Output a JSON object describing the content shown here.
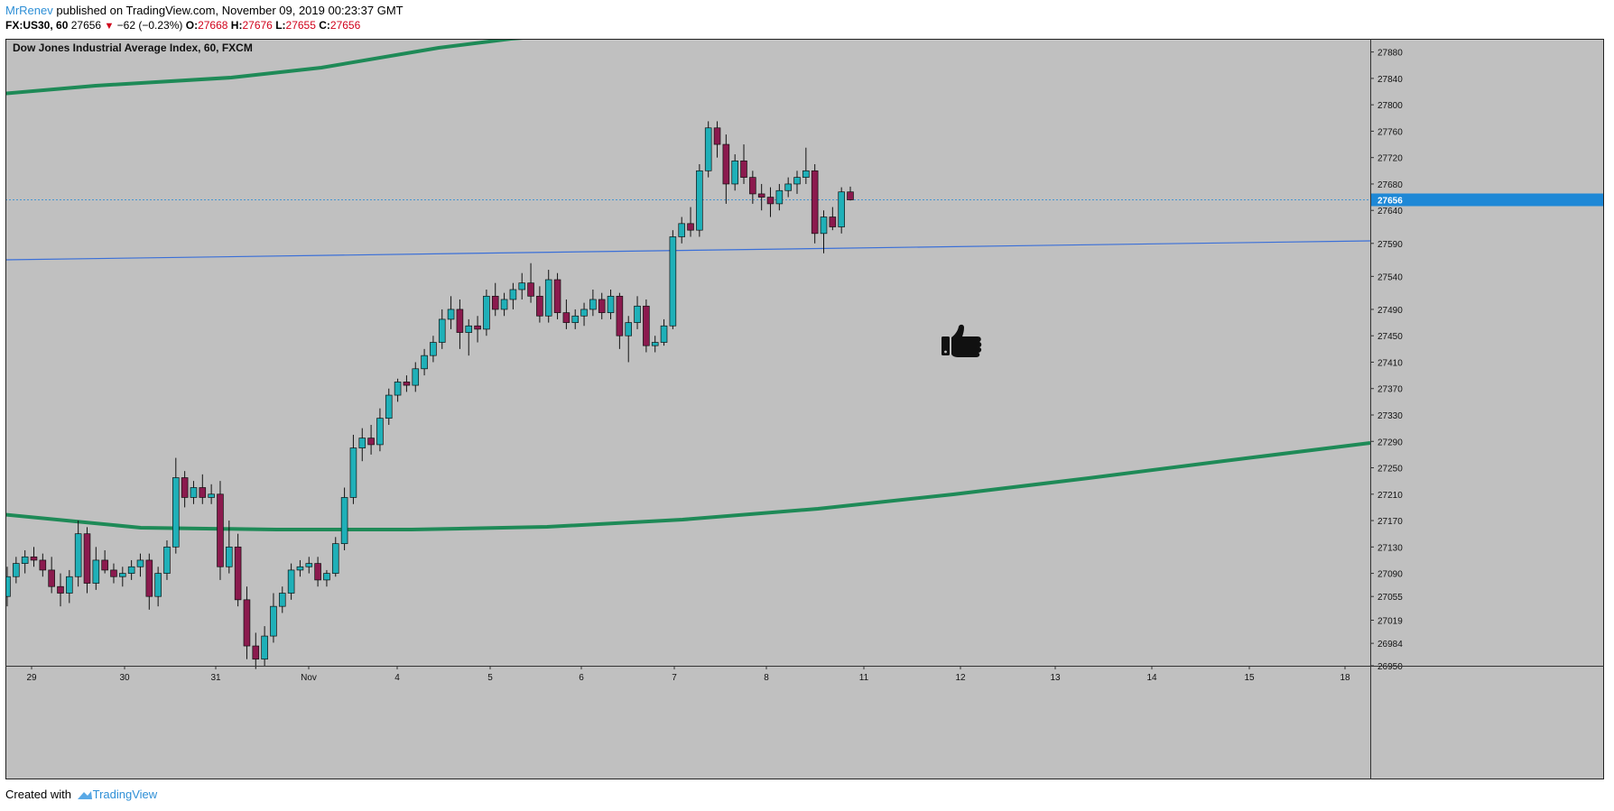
{
  "header": {
    "author": "MrRenev",
    "published_text": "published on TradingView.com, November 09, 2019 00:23:37 GMT",
    "symbol": "FX:US30, 60",
    "last": "27656",
    "change": "−62 (−0.23%)",
    "o_label": "O:",
    "o_value": "27668",
    "h_label": "H:",
    "h_value": "27676",
    "l_label": "L:",
    "l_value": "27655",
    "c_label": "C:",
    "c_value": "27656"
  },
  "footer": {
    "created_with": "Created with",
    "brand": "TradingView"
  },
  "colors": {
    "background": "#c0c0c0",
    "bull": "#1fb0b8",
    "bear": "#8b1a4e",
    "ema": "#1e8a57",
    "trendline": "#3a6fd8",
    "price_tag": "#1e88d6"
  },
  "chart_data": {
    "type": "candlestick",
    "title": "Dow Jones Industrial Average Index, 60, FXCM",
    "ylim": [
      26950,
      27900
    ],
    "y_ticks": [
      "27880",
      "27840",
      "27800",
      "27760",
      "27720",
      "27680",
      "27640",
      "27590",
      "27540",
      "27490",
      "27450",
      "27410",
      "27370",
      "27330",
      "27290",
      "27250",
      "27210",
      "27170",
      "27130",
      "27090",
      "27055",
      "27019",
      "26984",
      "26950"
    ],
    "x_ticks": [
      "29",
      "30",
      "31",
      "Nov",
      "4",
      "5",
      "6",
      "7",
      "8",
      "11",
      "12",
      "13",
      "14",
      "15",
      "18"
    ],
    "last_price": "27656",
    "annotation_icon": "thumbs-up-icon",
    "candles": [
      {
        "o": 27055,
        "h": 27100,
        "l": 27040,
        "c": 27085
      },
      {
        "o": 27085,
        "h": 27115,
        "l": 27075,
        "c": 27105
      },
      {
        "o": 27105,
        "h": 27125,
        "l": 27090,
        "c": 27115
      },
      {
        "o": 27115,
        "h": 27130,
        "l": 27100,
        "c": 27110
      },
      {
        "o": 27110,
        "h": 27120,
        "l": 27085,
        "c": 27095
      },
      {
        "o": 27095,
        "h": 27115,
        "l": 27060,
        "c": 27070
      },
      {
        "o": 27070,
        "h": 27090,
        "l": 27040,
        "c": 27060
      },
      {
        "o": 27060,
        "h": 27095,
        "l": 27045,
        "c": 27085
      },
      {
        "o": 27085,
        "h": 27170,
        "l": 27070,
        "c": 27150
      },
      {
        "o": 27150,
        "h": 27160,
        "l": 27060,
        "c": 27075
      },
      {
        "o": 27075,
        "h": 27130,
        "l": 27065,
        "c": 27110
      },
      {
        "o": 27110,
        "h": 27125,
        "l": 27090,
        "c": 27095
      },
      {
        "o": 27095,
        "h": 27105,
        "l": 27075,
        "c": 27085
      },
      {
        "o": 27085,
        "h": 27100,
        "l": 27070,
        "c": 27090
      },
      {
        "o": 27090,
        "h": 27110,
        "l": 27080,
        "c": 27100
      },
      {
        "o": 27100,
        "h": 27120,
        "l": 27085,
        "c": 27110
      },
      {
        "o": 27110,
        "h": 27120,
        "l": 27035,
        "c": 27055
      },
      {
        "o": 27055,
        "h": 27100,
        "l": 27040,
        "c": 27090
      },
      {
        "o": 27090,
        "h": 27140,
        "l": 27080,
        "c": 27130
      },
      {
        "o": 27130,
        "h": 27265,
        "l": 27120,
        "c": 27235
      },
      {
        "o": 27235,
        "h": 27245,
        "l": 27190,
        "c": 27205
      },
      {
        "o": 27205,
        "h": 27230,
        "l": 27195,
        "c": 27220
      },
      {
        "o": 27220,
        "h": 27240,
        "l": 27195,
        "c": 27205
      },
      {
        "o": 27205,
        "h": 27225,
        "l": 27195,
        "c": 27210
      },
      {
        "o": 27210,
        "h": 27230,
        "l": 27080,
        "c": 27100
      },
      {
        "o": 27100,
        "h": 27170,
        "l": 27090,
        "c": 27130
      },
      {
        "o": 27130,
        "h": 27150,
        "l": 27040,
        "c": 27050
      },
      {
        "o": 27050,
        "h": 27070,
        "l": 26960,
        "c": 26980
      },
      {
        "o": 26980,
        "h": 27000,
        "l": 26945,
        "c": 26960
      },
      {
        "o": 26960,
        "h": 27010,
        "l": 26950,
        "c": 26995
      },
      {
        "o": 26995,
        "h": 27060,
        "l": 26985,
        "c": 27040
      },
      {
        "o": 27040,
        "h": 27070,
        "l": 27030,
        "c": 27060
      },
      {
        "o": 27060,
        "h": 27105,
        "l": 27050,
        "c": 27095
      },
      {
        "o": 27095,
        "h": 27110,
        "l": 27085,
        "c": 27100
      },
      {
        "o": 27100,
        "h": 27115,
        "l": 27090,
        "c": 27105
      },
      {
        "o": 27105,
        "h": 27115,
        "l": 27070,
        "c": 27080
      },
      {
        "o": 27080,
        "h": 27095,
        "l": 27070,
        "c": 27090
      },
      {
        "o": 27090,
        "h": 27145,
        "l": 27085,
        "c": 27135
      },
      {
        "o": 27135,
        "h": 27220,
        "l": 27125,
        "c": 27205
      },
      {
        "o": 27205,
        "h": 27300,
        "l": 27195,
        "c": 27280
      },
      {
        "o": 27280,
        "h": 27310,
        "l": 27260,
        "c": 27295
      },
      {
        "o": 27295,
        "h": 27315,
        "l": 27270,
        "c": 27285
      },
      {
        "o": 27285,
        "h": 27340,
        "l": 27275,
        "c": 27325
      },
      {
        "o": 27325,
        "h": 27370,
        "l": 27315,
        "c": 27360
      },
      {
        "o": 27360,
        "h": 27385,
        "l": 27350,
        "c": 27380
      },
      {
        "o": 27380,
        "h": 27390,
        "l": 27365,
        "c": 27375
      },
      {
        "o": 27375,
        "h": 27410,
        "l": 27365,
        "c": 27400
      },
      {
        "o": 27400,
        "h": 27430,
        "l": 27390,
        "c": 27420
      },
      {
        "o": 27420,
        "h": 27450,
        "l": 27410,
        "c": 27440
      },
      {
        "o": 27440,
        "h": 27490,
        "l": 27430,
        "c": 27475
      },
      {
        "o": 27475,
        "h": 27510,
        "l": 27460,
        "c": 27490
      },
      {
        "o": 27490,
        "h": 27505,
        "l": 27430,
        "c": 27455
      },
      {
        "o": 27455,
        "h": 27475,
        "l": 27420,
        "c": 27465
      },
      {
        "o": 27465,
        "h": 27480,
        "l": 27440,
        "c": 27460
      },
      {
        "o": 27460,
        "h": 27520,
        "l": 27450,
        "c": 27510
      },
      {
        "o": 27510,
        "h": 27530,
        "l": 27480,
        "c": 27490
      },
      {
        "o": 27490,
        "h": 27515,
        "l": 27480,
        "c": 27505
      },
      {
        "o": 27505,
        "h": 27530,
        "l": 27490,
        "c": 27520
      },
      {
        "o": 27520,
        "h": 27545,
        "l": 27505,
        "c": 27530
      },
      {
        "o": 27530,
        "h": 27560,
        "l": 27500,
        "c": 27510
      },
      {
        "o": 27510,
        "h": 27525,
        "l": 27470,
        "c": 27480
      },
      {
        "o": 27480,
        "h": 27550,
        "l": 27470,
        "c": 27535
      },
      {
        "o": 27535,
        "h": 27545,
        "l": 27475,
        "c": 27485
      },
      {
        "o": 27485,
        "h": 27505,
        "l": 27460,
        "c": 27470
      },
      {
        "o": 27470,
        "h": 27490,
        "l": 27460,
        "c": 27480
      },
      {
        "o": 27480,
        "h": 27500,
        "l": 27465,
        "c": 27490
      },
      {
        "o": 27490,
        "h": 27520,
        "l": 27480,
        "c": 27505
      },
      {
        "o": 27505,
        "h": 27515,
        "l": 27475,
        "c": 27485
      },
      {
        "o": 27485,
        "h": 27520,
        "l": 27475,
        "c": 27510
      },
      {
        "o": 27510,
        "h": 27515,
        "l": 27430,
        "c": 27450
      },
      {
        "o": 27450,
        "h": 27480,
        "l": 27410,
        "c": 27470
      },
      {
        "o": 27470,
        "h": 27510,
        "l": 27460,
        "c": 27495
      },
      {
        "o": 27495,
        "h": 27505,
        "l": 27425,
        "c": 27435
      },
      {
        "o": 27435,
        "h": 27450,
        "l": 27425,
        "c": 27440
      },
      {
        "o": 27440,
        "h": 27475,
        "l": 27435,
        "c": 27465
      },
      {
        "o": 27465,
        "h": 27610,
        "l": 27460,
        "c": 27600
      },
      {
        "o": 27600,
        "h": 27630,
        "l": 27590,
        "c": 27620
      },
      {
        "o": 27620,
        "h": 27645,
        "l": 27600,
        "c": 27610
      },
      {
        "o": 27610,
        "h": 27710,
        "l": 27600,
        "c": 27700
      },
      {
        "o": 27700,
        "h": 27775,
        "l": 27690,
        "c": 27765
      },
      {
        "o": 27765,
        "h": 27775,
        "l": 27720,
        "c": 27740
      },
      {
        "o": 27740,
        "h": 27755,
        "l": 27650,
        "c": 27680
      },
      {
        "o": 27680,
        "h": 27725,
        "l": 27670,
        "c": 27715
      },
      {
        "o": 27715,
        "h": 27740,
        "l": 27680,
        "c": 27690
      },
      {
        "o": 27690,
        "h": 27700,
        "l": 27650,
        "c": 27665
      },
      {
        "o": 27665,
        "h": 27680,
        "l": 27640,
        "c": 27660
      },
      {
        "o": 27660,
        "h": 27675,
        "l": 27630,
        "c": 27650
      },
      {
        "o": 27650,
        "h": 27680,
        "l": 27640,
        "c": 27670
      },
      {
        "o": 27670,
        "h": 27690,
        "l": 27660,
        "c": 27680
      },
      {
        "o": 27680,
        "h": 27700,
        "l": 27665,
        "c": 27690
      },
      {
        "o": 27690,
        "h": 27735,
        "l": 27680,
        "c": 27700
      },
      {
        "o": 27700,
        "h": 27710,
        "l": 27590,
        "c": 27605
      },
      {
        "o": 27605,
        "h": 27640,
        "l": 27575,
        "c": 27630
      },
      {
        "o": 27630,
        "h": 27645,
        "l": 27610,
        "c": 27615
      },
      {
        "o": 27615,
        "h": 27675,
        "l": 27605,
        "c": 27668
      },
      {
        "o": 27668,
        "h": 27676,
        "l": 27655,
        "c": 27656
      }
    ]
  }
}
